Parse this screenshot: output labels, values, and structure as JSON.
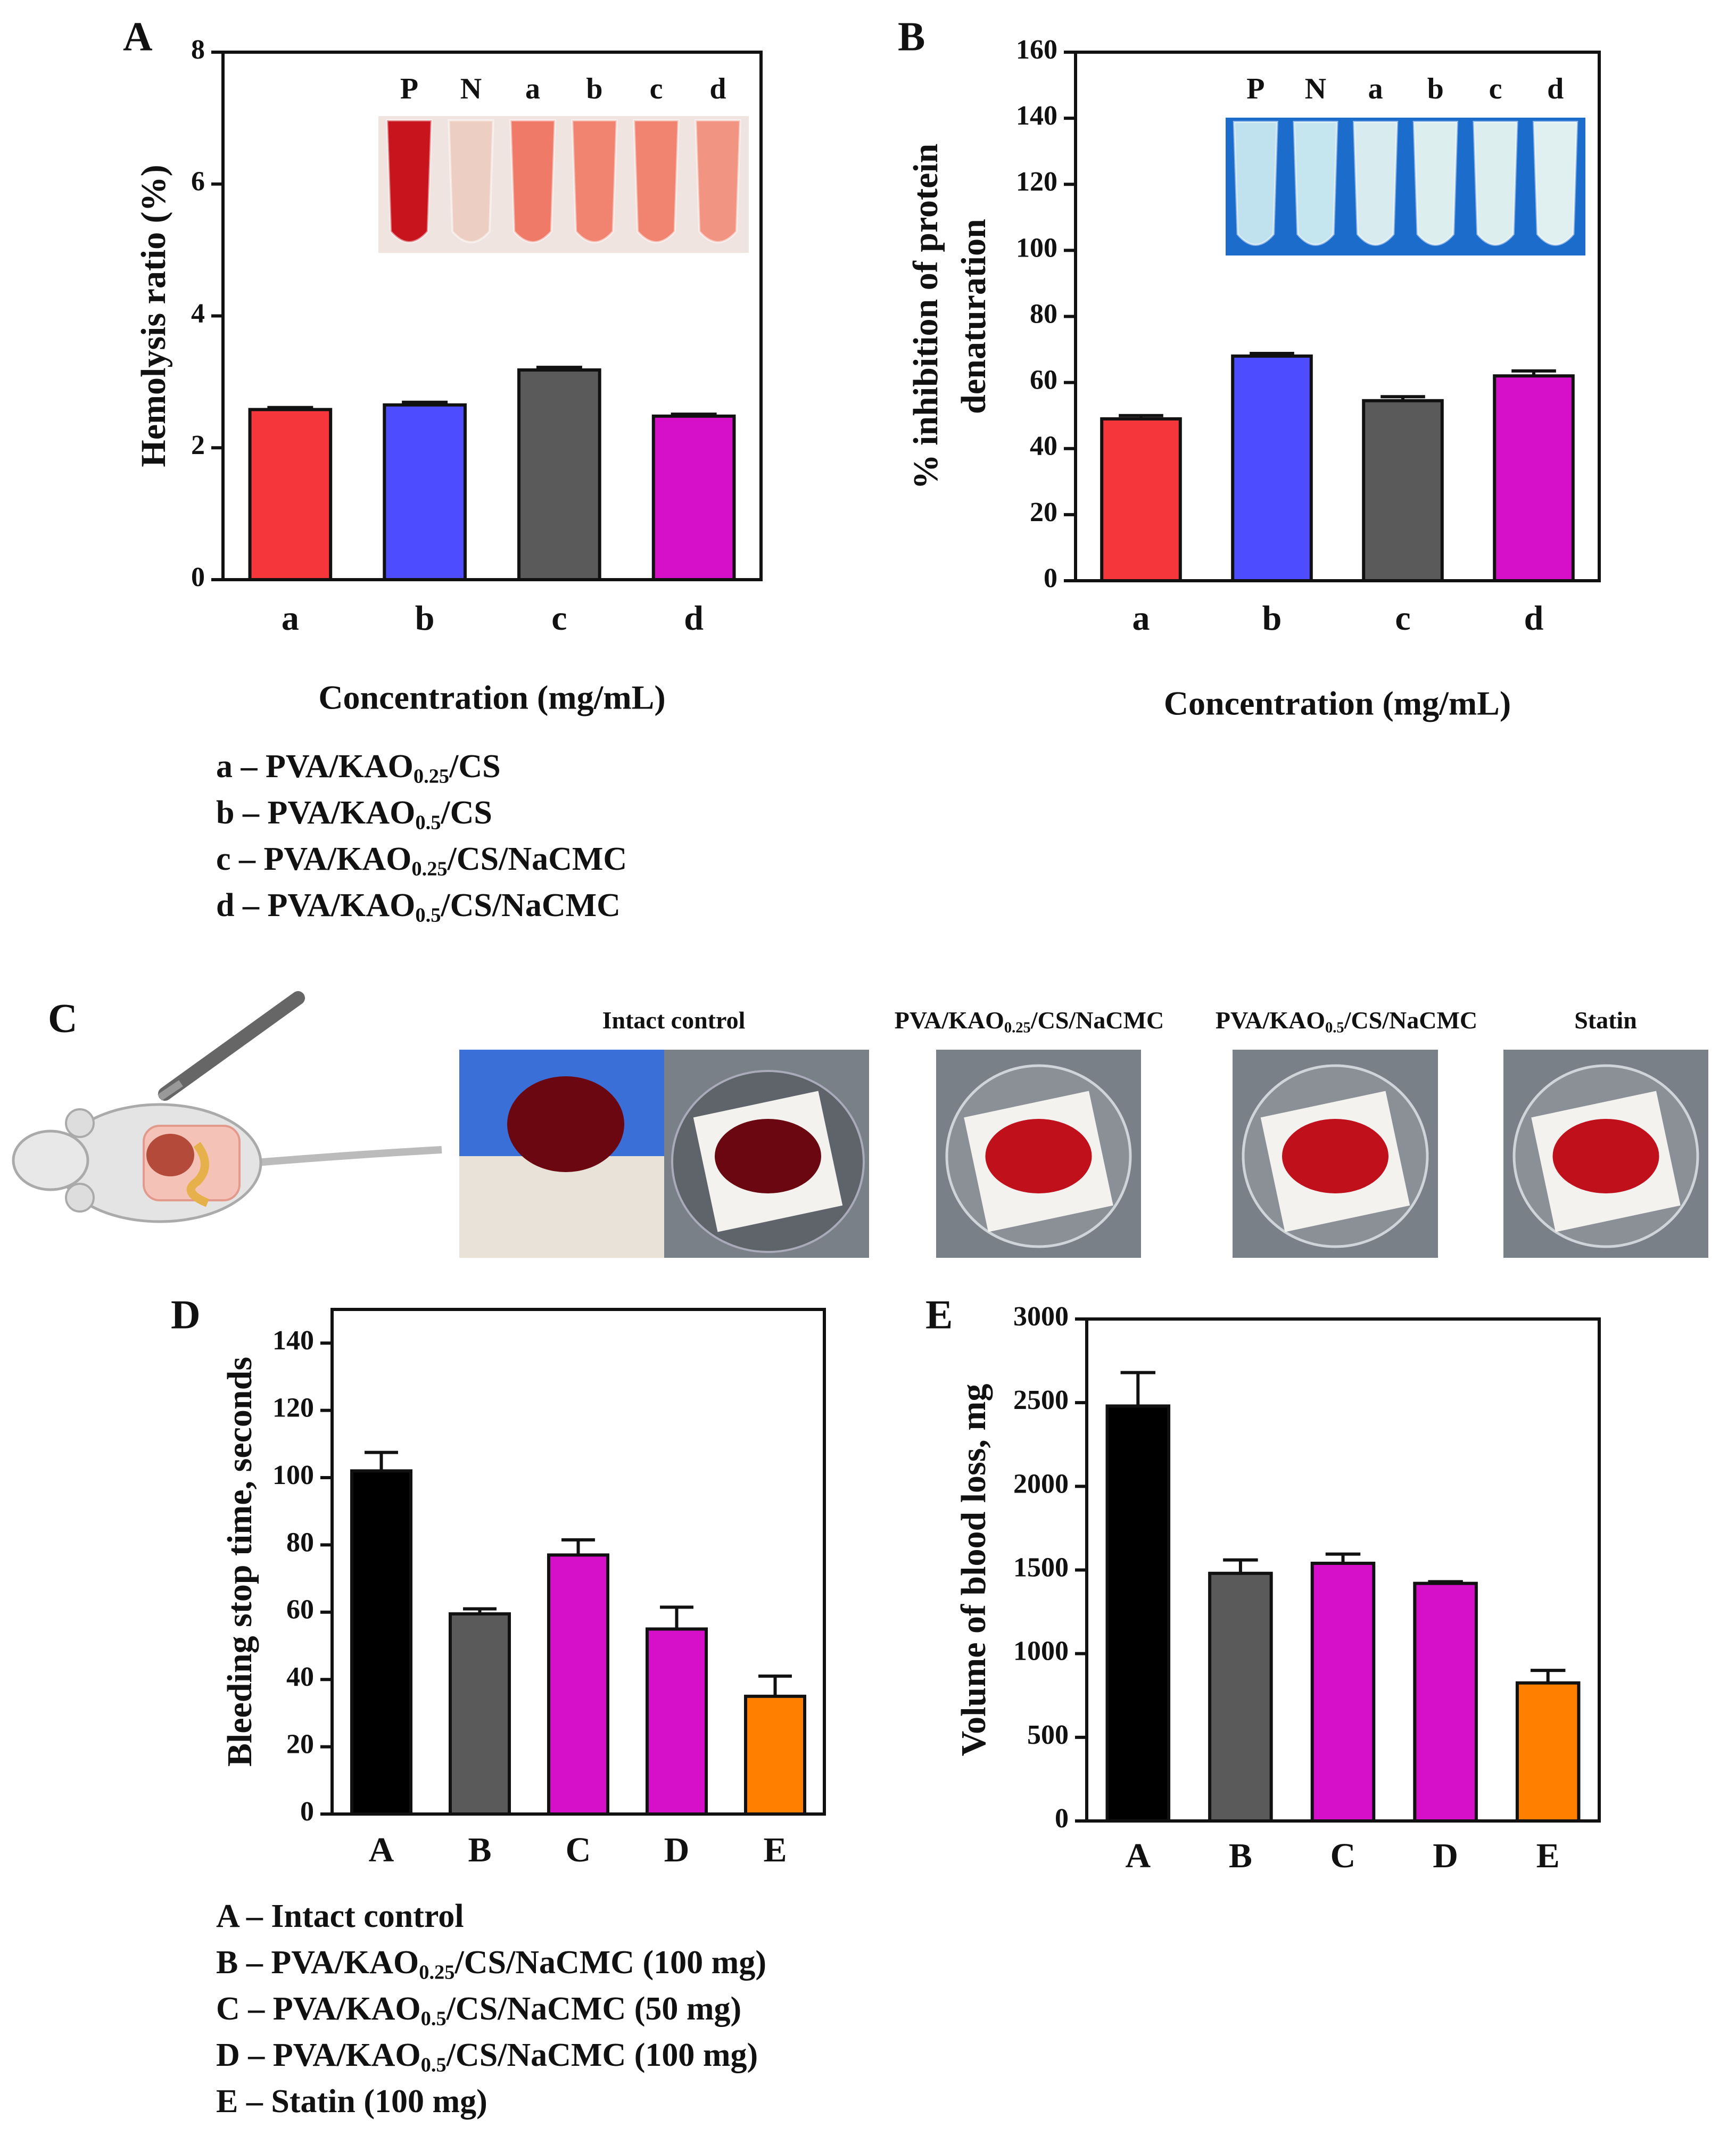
{
  "chart_data": [
    {
      "type": "bar",
      "panel": "A",
      "ylabel": [
        "Hemolysis ratio (%)"
      ],
      "xlabel": "Concentration (mg/mL)",
      "categories": [
        "a",
        "b",
        "c",
        "d"
      ],
      "values": [
        2.58,
        2.65,
        3.18,
        2.48
      ],
      "errors": [
        0.03,
        0.04,
        0.04,
        0.03
      ],
      "colors": [
        "#f5373b",
        "#4d4dff",
        "#5a5a5a",
        "#d60fc9"
      ],
      "ylim": [
        0,
        8
      ],
      "yticks": [
        0,
        2,
        4,
        6,
        8
      ],
      "inset_labels": [
        "P",
        "N",
        "a",
        "b",
        "c",
        "d"
      ]
    },
    {
      "type": "bar",
      "panel": "B",
      "ylabel": [
        "% inhibition of protein",
        "denaturation"
      ],
      "xlabel": "Concentration (mg/mL)",
      "categories": [
        "a",
        "b",
        "c",
        "d"
      ],
      "values": [
        49,
        68,
        54.5,
        62
      ],
      "errors": [
        1,
        0.8,
        1.2,
        1.5
      ],
      "colors": [
        "#f5373b",
        "#4d4dff",
        "#5a5a5a",
        "#d60fc9"
      ],
      "ylim": [
        0,
        160
      ],
      "yticks": [
        0,
        20,
        40,
        60,
        80,
        100,
        120,
        140,
        160
      ],
      "inset_labels": [
        "P",
        "N",
        "a",
        "b",
        "c",
        "d"
      ]
    },
    {
      "type": "bar",
      "panel": "D",
      "ylabel": [
        "Bleeding stop time, seconds"
      ],
      "categories": [
        "A",
        "B",
        "C",
        "D",
        "E"
      ],
      "values": [
        102,
        59.5,
        77,
        55,
        35
      ],
      "errors": [
        5.5,
        1.5,
        4.5,
        6.5,
        6
      ],
      "colors": [
        "#000000",
        "#5a5a5a",
        "#d60fc9",
        "#d60fc9",
        "#ff8000"
      ],
      "ylim": [
        0,
        150
      ],
      "yticks": [
        0,
        20,
        40,
        60,
        80,
        100,
        120,
        140
      ]
    },
    {
      "type": "bar",
      "panel": "E",
      "ylabel": [
        "Volume of blood loss, mg"
      ],
      "categories": [
        "A",
        "B",
        "C",
        "D",
        "E"
      ],
      "values": [
        2480,
        1480,
        1540,
        1420,
        825
      ],
      "errors": [
        200,
        80,
        55,
        10,
        75
      ],
      "colors": [
        "#000000",
        "#5a5a5a",
        "#d60fc9",
        "#d60fc9",
        "#ff8000"
      ],
      "ylim": [
        0,
        3000
      ],
      "yticks": [
        0,
        500,
        1000,
        1500,
        2000,
        2500,
        3000
      ]
    }
  ],
  "legend_ab": [
    [
      "a – PVA/KAO",
      "0.25",
      "/CS"
    ],
    [
      "b – PVA/KAO",
      "0.5",
      "/CS"
    ],
    [
      "c – PVA/KAO",
      "0.25",
      "/CS/NaCMC"
    ],
    [
      "d – PVA/KAO",
      "0.5",
      "/CS/NaCMC"
    ]
  ],
  "legend_de": [
    [
      "A – Intact control"
    ],
    [
      "B – PVA/KAO",
      "0.25",
      "/CS/NaCMC (100 mg)"
    ],
    [
      "C – PVA/KAO",
      "0.5",
      "/CS/NaCMC (50 mg)"
    ],
    [
      "D – PVA/KAO",
      "0.5",
      "/CS/NaCMC (100 mg)"
    ],
    [
      "E – Statin (100 mg)"
    ]
  ],
  "panel_c": {
    "label": "C",
    "photos": [
      [
        "Intact control"
      ],
      [
        "PVA/KAO",
        "0.25",
        "/CS/NaCMC"
      ],
      [
        "PVA/KAO",
        "0.5",
        "/CS/NaCMC"
      ],
      [
        "Statin"
      ]
    ]
  }
}
